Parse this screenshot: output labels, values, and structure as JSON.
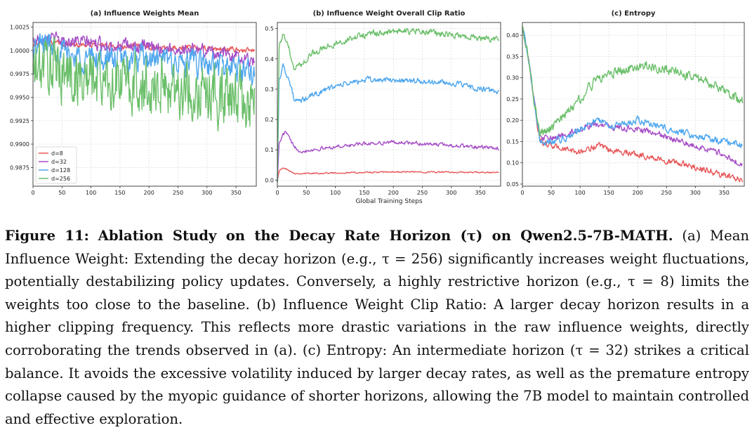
{
  "chart_data": [
    {
      "type": "line",
      "title": "(a) Influence Weights Mean",
      "xlabel": "",
      "ylabel": "",
      "xlim": [
        0,
        385
      ],
      "ylim": [
        0.9855,
        1.003
      ],
      "xticks": [
        0,
        50,
        100,
        150,
        200,
        250,
        300,
        350
      ],
      "yticks": [
        0.9875,
        0.99,
        0.9925,
        0.995,
        0.9975,
        1.0,
        1.0025
      ],
      "ytick_labels": [
        "0.9875",
        "0.9900",
        "0.9925",
        "0.9950",
        "0.9975",
        "1.0000",
        "1.0025"
      ],
      "grid": true,
      "legend": "lower-left",
      "series": [
        {
          "name": "d=8",
          "color": "#e8585a",
          "x": [
            0,
            20,
            40,
            60,
            80,
            100,
            130,
            160,
            200,
            250,
            300,
            350,
            385
          ],
          "y": [
            1.0005,
            1.001,
            1.0008,
            1.0007,
            1.0006,
            1.0006,
            1.0005,
            1.0005,
            1.0004,
            1.0003,
            1.0002,
            1.0001,
            0.9999
          ],
          "noise": 0.00025
        },
        {
          "name": "d=32",
          "color": "#a64ec6",
          "x": [
            0,
            20,
            40,
            60,
            80,
            100,
            130,
            160,
            200,
            250,
            300,
            350,
            385
          ],
          "y": [
            1.001,
            1.0015,
            1.0012,
            1.001,
            1.001,
            1.0008,
            1.0006,
            1.0005,
            1.0003,
            1.0001,
            1.0,
            0.9994,
            0.9988
          ],
          "noise": 0.0006
        },
        {
          "name": "d=128",
          "color": "#4da6ee",
          "x": [
            0,
            20,
            40,
            60,
            80,
            100,
            130,
            160,
            200,
            250,
            300,
            350,
            385
          ],
          "y": [
            1.0,
            1.001,
            1.0003,
            0.9995,
            0.9993,
            0.9992,
            0.999,
            0.999,
            0.999,
            0.9987,
            0.9985,
            0.998,
            0.9975
          ],
          "noise": 0.0012
        },
        {
          "name": "d=256",
          "color": "#6cbf6b",
          "x": [
            0,
            20,
            40,
            60,
            80,
            100,
            130,
            160,
            200,
            250,
            300,
            350,
            385
          ],
          "y": [
            0.9975,
            0.9985,
            0.998,
            0.9975,
            0.9972,
            0.997,
            0.9968,
            0.9965,
            0.9962,
            0.996,
            0.9955,
            0.9948,
            0.994
          ],
          "noise": 0.0028
        }
      ]
    },
    {
      "type": "line",
      "title": "(b) Influence Weight Overall Clip Ratio",
      "xlabel": "Global Training Steps",
      "ylabel": "",
      "xlim": [
        0,
        385
      ],
      "ylim": [
        -0.02,
        0.52
      ],
      "xticks": [
        0,
        50,
        100,
        150,
        200,
        250,
        300,
        350
      ],
      "yticks": [
        0.0,
        0.1,
        0.2,
        0.3,
        0.4,
        0.5
      ],
      "ytick_labels": [
        "0.0",
        "0.1",
        "0.2",
        "0.3",
        "0.4",
        "0.5"
      ],
      "grid": true,
      "series": [
        {
          "name": "d=8",
          "color": "#e8585a",
          "x": [
            0,
            3,
            10,
            20,
            30,
            60,
            100,
            150,
            200,
            250,
            300,
            350,
            385
          ],
          "y": [
            0.0,
            0.03,
            0.04,
            0.033,
            0.022,
            0.022,
            0.024,
            0.025,
            0.027,
            0.027,
            0.026,
            0.025,
            0.025
          ],
          "noise": 0.002
        },
        {
          "name": "d=32",
          "color": "#a64ec6",
          "x": [
            0,
            3,
            10,
            15,
            25,
            40,
            60,
            100,
            150,
            200,
            250,
            300,
            350,
            385
          ],
          "y": [
            0.0,
            0.12,
            0.15,
            0.16,
            0.12,
            0.095,
            0.1,
            0.11,
            0.12,
            0.125,
            0.12,
            0.115,
            0.108,
            0.105
          ],
          "noise": 0.005
        },
        {
          "name": "d=128",
          "color": "#4da6ee",
          "x": [
            0,
            3,
            10,
            20,
            30,
            40,
            60,
            100,
            150,
            200,
            250,
            300,
            350,
            385
          ],
          "y": [
            0.0,
            0.33,
            0.38,
            0.33,
            0.26,
            0.26,
            0.28,
            0.31,
            0.33,
            0.33,
            0.325,
            0.32,
            0.3,
            0.29
          ],
          "noise": 0.008
        },
        {
          "name": "d=256",
          "color": "#6cbf6b",
          "x": [
            0,
            3,
            10,
            20,
            30,
            40,
            60,
            100,
            150,
            200,
            250,
            300,
            350,
            385
          ],
          "y": [
            0.0,
            0.44,
            0.48,
            0.43,
            0.37,
            0.38,
            0.42,
            0.45,
            0.48,
            0.49,
            0.49,
            0.48,
            0.47,
            0.465
          ],
          "noise": 0.009
        }
      ]
    },
    {
      "type": "line",
      "title": "(c) Entropy",
      "xlabel": "",
      "ylabel": "",
      "xlim": [
        0,
        385
      ],
      "ylim": [
        0.045,
        0.43
      ],
      "xticks": [
        0,
        50,
        100,
        150,
        200,
        250,
        300,
        350
      ],
      "yticks": [
        0.05,
        0.1,
        0.15,
        0.2,
        0.25,
        0.3,
        0.35,
        0.4
      ],
      "ytick_labels": [
        "0.05",
        "0.10",
        "0.15",
        "0.20",
        "0.25",
        "0.30",
        "0.35",
        "0.40"
      ],
      "grid": true,
      "series": [
        {
          "name": "d=8",
          "color": "#e8585a",
          "x": [
            0,
            10,
            20,
            30,
            50,
            80,
            100,
            130,
            150,
            180,
            200,
            250,
            300,
            350,
            385
          ],
          "y": [
            0.42,
            0.35,
            0.25,
            0.15,
            0.14,
            0.13,
            0.125,
            0.14,
            0.13,
            0.125,
            0.12,
            0.105,
            0.09,
            0.07,
            0.06
          ],
          "noise": 0.006
        },
        {
          "name": "d=32",
          "color": "#a64ec6",
          "x": [
            0,
            10,
            20,
            30,
            50,
            80,
            100,
            130,
            150,
            180,
            200,
            250,
            300,
            350,
            385
          ],
          "y": [
            0.42,
            0.35,
            0.25,
            0.16,
            0.155,
            0.17,
            0.18,
            0.19,
            0.185,
            0.18,
            0.18,
            0.16,
            0.14,
            0.12,
            0.09
          ],
          "noise": 0.006
        },
        {
          "name": "d=128",
          "color": "#4da6ee",
          "x": [
            0,
            10,
            20,
            30,
            50,
            80,
            100,
            130,
            150,
            180,
            200,
            250,
            300,
            350,
            385
          ],
          "y": [
            0.42,
            0.35,
            0.25,
            0.15,
            0.15,
            0.16,
            0.18,
            0.2,
            0.19,
            0.19,
            0.2,
            0.18,
            0.165,
            0.15,
            0.14
          ],
          "noise": 0.007
        },
        {
          "name": "d=256",
          "color": "#6cbf6b",
          "x": [
            0,
            10,
            20,
            30,
            50,
            80,
            100,
            130,
            150,
            180,
            200,
            250,
            300,
            350,
            385
          ],
          "y": [
            0.42,
            0.35,
            0.25,
            0.17,
            0.18,
            0.22,
            0.25,
            0.3,
            0.31,
            0.32,
            0.33,
            0.32,
            0.3,
            0.27,
            0.24
          ],
          "noise": 0.01
        }
      ]
    }
  ],
  "caption": {
    "label": "Figure 11:",
    "bold_title": "Ablation Study on the Decay Rate Horizon (τ) on Qwen2.5-7B-MATH.",
    "body": " (a) Mean Influence Weight: Extending the decay horizon (e.g., τ = 256) significantly increases weight fluctuations, potentially destabilizing policy updates. Conversely, a highly restrictive horizon (e.g., τ = 8) limits the weights too close to the baseline. (b) Influence Weight Clip Ratio: A larger decay horizon results in a higher clipping frequency. This reflects more drastic variations in the raw influence weights, directly corroborating the trends observed in (a). (c) Entropy: An intermediate horizon (τ = 32) strikes a critical balance. It avoids the excessive volatility induced by larger decay rates, as well as the premature entropy collapse caused by the myopic guidance of shorter horizons, allowing the 7B model to maintain controlled and effective exploration."
  }
}
